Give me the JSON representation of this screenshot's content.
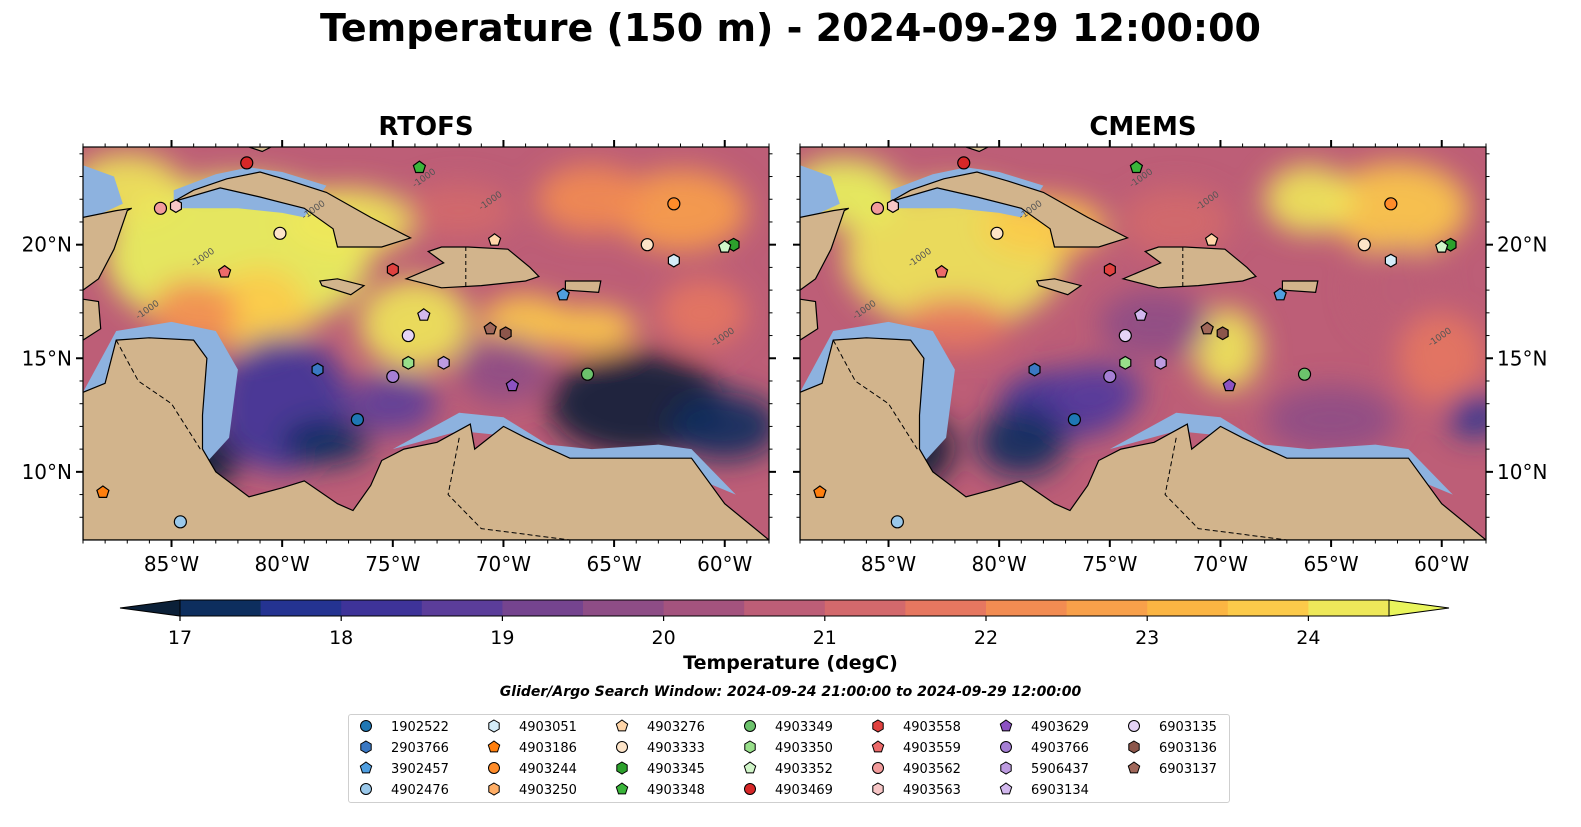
{
  "title": "Temperature (150 m) - 2024-09-29 12:00:00",
  "panels": [
    {
      "title": "RTOFS"
    },
    {
      "title": "CMEMS"
    }
  ],
  "colors": {
    "land": "#d2b48c",
    "shelf": "#8db2df",
    "deep": "#08222f",
    "cmap": [
      "#0b2038",
      "#0d2e5e",
      "#243391",
      "#3e3399",
      "#5b3d9a",
      "#75448f",
      "#8e4d86",
      "#a4537e",
      "#bd5e77",
      "#d3696c",
      "#e67760",
      "#f28c52",
      "#f8a04a",
      "#fbb543",
      "#fcca4a",
      "#eee85a",
      "#e9f55c"
    ]
  },
  "chart_data": {
    "type": "heatmap",
    "variable": "Temperature (degC)",
    "colorbar_ticks": [
      17,
      18,
      19,
      20,
      21,
      22,
      23,
      24
    ],
    "colorbar_range": [
      16.5,
      25
    ],
    "x_ticks": [
      "85°W",
      "80°W",
      "75°W",
      "70°W",
      "65°W",
      "60°W"
    ],
    "y_ticks": [
      "20°N",
      "15°N",
      "10°N"
    ],
    "xlim": [
      -89,
      -58
    ],
    "ylim": [
      7,
      24.3
    ],
    "contour_label": "-1000",
    "search_window": "Glider/Argo Search Window: 2024-09-24 21:00:00 to 2024-09-29 12:00:00",
    "platforms": [
      {
        "id": "1902522",
        "marker": "circle",
        "color": "#1f77b4"
      },
      {
        "id": "2903766",
        "marker": "hexagon",
        "color": "#3a78c3"
      },
      {
        "id": "3902457",
        "marker": "pentagon",
        "color": "#4f9ee0"
      },
      {
        "id": "4902476",
        "marker": "circle",
        "color": "#9ac8ea",
        "lon": -84.6,
        "lat": 7.8
      },
      {
        "id": "4903051",
        "marker": "hexagon",
        "color": "#d4ecf8",
        "lon": -62.3,
        "lat": 19.3
      },
      {
        "id": "4903186",
        "marker": "pentagon",
        "color": "#ff7f0e",
        "lon": -88.1,
        "lat": 9.1
      },
      {
        "id": "4903244",
        "marker": "circle",
        "color": "#ff8c2a"
      },
      {
        "id": "4903250",
        "marker": "hexagon",
        "color": "#ffae66"
      },
      {
        "id": "4903276",
        "marker": "pentagon",
        "color": "#ffd5a8",
        "lon": -70.4,
        "lat": 20.2
      },
      {
        "id": "4903333",
        "marker": "circle",
        "color": "#fde4c8",
        "lon": -63.5,
        "lat": 20.0
      },
      {
        "id": "4903345",
        "marker": "hexagon",
        "color": "#2ca02c",
        "lon": -59.6,
        "lat": 20.0
      },
      {
        "id": "4903348",
        "marker": "pentagon",
        "color": "#3ab53a",
        "lon": -73.8,
        "lat": 23.4
      },
      {
        "id": "4903349",
        "marker": "circle",
        "color": "#6cc26c",
        "lon": -66.2,
        "lat": 14.3
      },
      {
        "id": "4903350",
        "marker": "hexagon",
        "color": "#98df8a",
        "lon": -74.3,
        "lat": 14.8
      },
      {
        "id": "4903352",
        "marker": "pentagon",
        "color": "#d0f5c8",
        "lon": -60.0,
        "lat": 19.9
      },
      {
        "id": "4903469",
        "marker": "circle",
        "color": "#d62728",
        "lon": -81.6,
        "lat": 23.6
      },
      {
        "id": "4903558",
        "marker": "hexagon",
        "color": "#e0413f",
        "lon": -75.0,
        "lat": 18.9
      },
      {
        "id": "4903559",
        "marker": "pentagon",
        "color": "#ec6a6a",
        "lon": -82.6,
        "lat": 18.8
      },
      {
        "id": "4903562",
        "marker": "circle",
        "color": "#f29b9b",
        "lon": -85.5,
        "lat": 21.6
      },
      {
        "id": "4903563",
        "marker": "hexagon",
        "color": "#f7c6c6",
        "lon": -84.8,
        "lat": 21.7
      },
      {
        "id": "4903629",
        "marker": "pentagon",
        "color": "#8c52c2",
        "lon": -69.6,
        "lat": 13.8
      },
      {
        "id": "4903766",
        "marker": "circle",
        "color": "#a57fd4",
        "lon": -75.0,
        "lat": 14.2
      },
      {
        "id": "5906437",
        "marker": "hexagon",
        "color": "#bd9be0",
        "lon": -72.7,
        "lat": 14.8
      },
      {
        "id": "6903134",
        "marker": "pentagon",
        "color": "#d2b8ee",
        "lon": -73.6,
        "lat": 16.9
      },
      {
        "id": "6903135",
        "marker": "circle",
        "color": "#e4d3f5",
        "lon": -74.3,
        "lat": 16.0
      },
      {
        "id": "6903136",
        "marker": "hexagon",
        "color": "#8c564b",
        "lon": -69.9,
        "lat": 16.1
      },
      {
        "id": "6903137",
        "marker": "pentagon",
        "color": "#a0675a",
        "lon": -70.6,
        "lat": 16.3
      }
    ],
    "extra_points": [
      {
        "marker": "hexagon",
        "color": "#3a78c3",
        "lon": -78.4,
        "lat": 14.5
      },
      {
        "marker": "pentagon",
        "color": "#4f9ee0",
        "lon": -67.3,
        "lat": 17.8
      },
      {
        "marker": "circle",
        "color": "#1f77b4",
        "lon": -76.6,
        "lat": 12.3
      },
      {
        "marker": "circle",
        "color": "#ff8c2a",
        "lon": -62.3,
        "lat": 21.8
      },
      {
        "marker": "circle",
        "color": "#fde4c8",
        "lon": -80.1,
        "lat": 20.5
      }
    ]
  },
  "colorbar_label": "Temperature (degC)"
}
